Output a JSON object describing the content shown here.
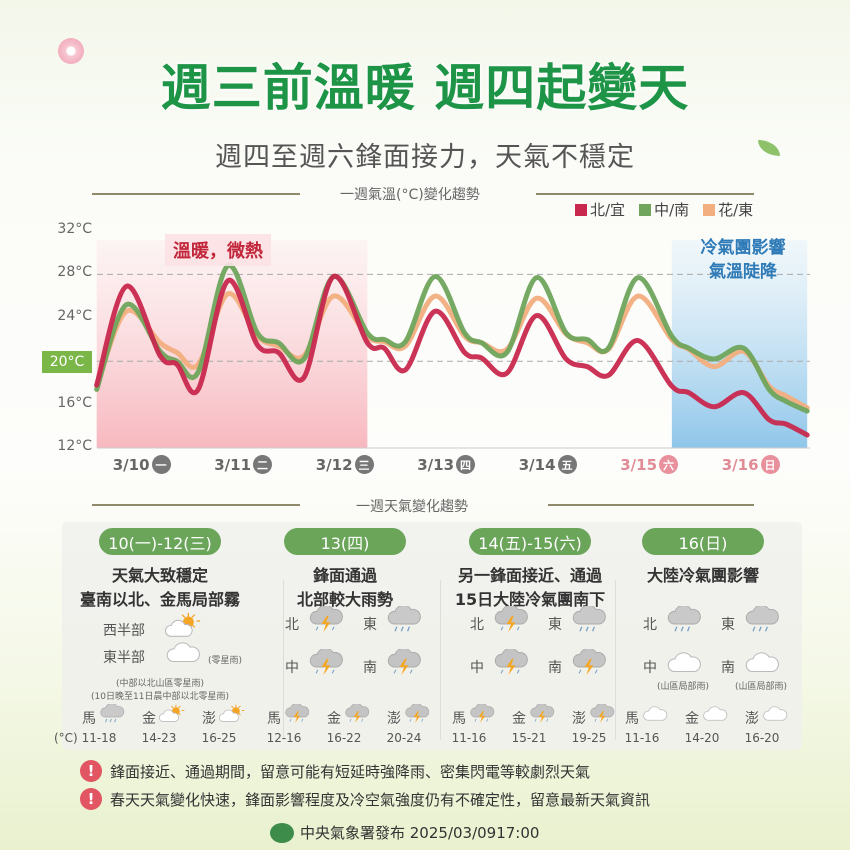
{
  "header": {
    "title": "週三前溫暖 週四起變天",
    "subtitle": "週四至週六鋒面接力，天氣不穩定"
  },
  "chart_data": {
    "type": "line",
    "title": "一週氣溫(°C)變化趨勢",
    "ylabel": "°C",
    "ylim": [
      12,
      32
    ],
    "yticks": [
      "32°C",
      "28°C",
      "24°C",
      "20°C",
      "16°C",
      "12°C"
    ],
    "ytick_values": [
      32,
      28,
      24,
      20,
      16,
      12
    ],
    "highlight_ytick": "20°C",
    "gridlines_dashed": [
      28,
      20
    ],
    "legend_position": "top-right",
    "xticks": [
      {
        "date": "3/10",
        "weekday": "一",
        "weekend": false
      },
      {
        "date": "3/11",
        "weekday": "二",
        "weekend": false
      },
      {
        "date": "3/12",
        "weekday": "三",
        "weekend": false
      },
      {
        "date": "3/13",
        "weekday": "四",
        "weekend": false
      },
      {
        "date": "3/14",
        "weekday": "五",
        "weekend": false
      },
      {
        "date": "3/15",
        "weekday": "六",
        "weekend": true
      },
      {
        "date": "3/16",
        "weekday": "日",
        "weekend": true
      }
    ],
    "x": [
      "3/10 03:00",
      "3/10 10:00",
      "3/10 18:00",
      "3/10 22:00",
      "3/11 03:00",
      "3/11 10:00",
      "3/11 17:00",
      "3/11 22:00",
      "3/12 04:00",
      "3/12 11:00",
      "3/12 19:00",
      "3/12 23:00",
      "3/13 04:00",
      "3/13 11:00",
      "3/13 18:00",
      "3/13 22:00",
      "3/14 04:00",
      "3/14 11:00",
      "3/14 18:00",
      "3/14 23:00",
      "3/15 04:00",
      "3/15 11:00",
      "3/15 19:00",
      "3/15 23:00",
      "3/16 05:00",
      "3/16 12:00",
      "3/16 18:00",
      "3/16 22:00",
      "3/17 03:00"
    ],
    "series": [
      {
        "name": "北/宜",
        "color": "#c8284e",
        "values": [
          17.8,
          26.9,
          20.5,
          19.7,
          17.4,
          27.4,
          21.5,
          20.8,
          18.5,
          27.8,
          21.7,
          21.2,
          19.2,
          24.6,
          20.8,
          20.3,
          18.9,
          24.2,
          20.2,
          19.5,
          18.7,
          21.9,
          17.7,
          17.1,
          15.8,
          17.1,
          14.6,
          14.2,
          13.2
        ]
      },
      {
        "name": "中/南",
        "color": "#6fa55c",
        "values": [
          17.4,
          25.2,
          20.9,
          20.0,
          19.0,
          28.8,
          22.6,
          21.7,
          20.2,
          27.8,
          22.6,
          22.0,
          21.8,
          27.8,
          22.6,
          21.7,
          20.8,
          27.7,
          22.6,
          22.0,
          21.2,
          27.7,
          22.3,
          21.2,
          20.2,
          21.2,
          17.4,
          16.3,
          15.4
        ]
      },
      {
        "name": "花/東",
        "color": "#f2ae7e",
        "values": [
          17.7,
          24.6,
          21.7,
          20.8,
          19.7,
          26.2,
          22.3,
          21.4,
          20.5,
          26.0,
          22.3,
          21.8,
          21.4,
          26.0,
          22.3,
          21.7,
          21.1,
          25.8,
          22.5,
          21.7,
          21.1,
          26.0,
          22.0,
          21.1,
          19.5,
          20.9,
          17.7,
          16.8,
          15.7
        ]
      }
    ],
    "annotations": [
      {
        "label": "溫暖，微熱",
        "from": "3/10 03:00",
        "to": "3/12 19:00",
        "color": "#f7bcc2"
      },
      {
        "label_lines": [
          "冷氣團影響",
          "氣溫陡降"
        ],
        "from": "3/15 19:00",
        "to": "3/17 03:00",
        "color": "#8fc6ea"
      }
    ]
  },
  "weekly": {
    "title": "一週天氣變化趨勢",
    "temp_unit": "(°C)",
    "columns": [
      {
        "pill": "10(一)-12(三)",
        "headline": [
          "天氣大致穩定",
          "臺南以北、金馬局部霧"
        ],
        "regions": [
          {
            "label": "西半部",
            "icon": "sun-cloud"
          },
          {
            "label": "東半部",
            "icon": "cloud",
            "note": "(零星雨)"
          }
        ],
        "notes": [
          "(中部以北山區零星雨)",
          "(10日晚至11日晨中部以北零星雨)"
        ],
        "islands": [
          {
            "name": "馬",
            "icon": "rain",
            "temp": "11-18"
          },
          {
            "name": "金",
            "icon": "sun-cloud",
            "temp": "14-23"
          },
          {
            "name": "澎",
            "icon": "sun-cloud",
            "temp": "16-25"
          }
        ]
      },
      {
        "pill": "13(四)",
        "headline": [
          "鋒面通過",
          "北部較大雨勢"
        ],
        "regions": [
          {
            "label": "北",
            "icon": "thunder"
          },
          {
            "label": "東",
            "icon": "rain"
          },
          {
            "label": "中",
            "icon": "thunder"
          },
          {
            "label": "南",
            "icon": "thunder"
          }
        ],
        "islands": [
          {
            "name": "馬",
            "icon": "thunder",
            "temp": "12-16"
          },
          {
            "name": "金",
            "icon": "thunder",
            "temp": "16-22"
          },
          {
            "name": "澎",
            "icon": "thunder",
            "temp": "20-24"
          }
        ]
      },
      {
        "pill": "14(五)-15(六)",
        "headline": [
          "另一鋒面接近、通過",
          "15日大陸冷氣團南下"
        ],
        "regions": [
          {
            "label": "北",
            "icon": "thunder"
          },
          {
            "label": "東",
            "icon": "rain"
          },
          {
            "label": "中",
            "icon": "thunder"
          },
          {
            "label": "南",
            "icon": "thunder"
          }
        ],
        "islands": [
          {
            "name": "馬",
            "icon": "thunder",
            "temp": "11-16"
          },
          {
            "name": "金",
            "icon": "thunder",
            "temp": "15-21"
          },
          {
            "name": "澎",
            "icon": "thunder",
            "temp": "19-25"
          }
        ]
      },
      {
        "pill": "16(日)",
        "headline": [
          "大陸冷氣團影響"
        ],
        "regions": [
          {
            "label": "北",
            "icon": "rain"
          },
          {
            "label": "東",
            "icon": "rain"
          },
          {
            "label": "中",
            "icon": "cloud",
            "note": "(山區局部雨)"
          },
          {
            "label": "南",
            "icon": "cloud",
            "note": "(山區局部雨)"
          }
        ],
        "islands": [
          {
            "name": "馬",
            "icon": "cloud",
            "temp": "11-16"
          },
          {
            "name": "金",
            "icon": "cloud",
            "temp": "14-20"
          },
          {
            "name": "澎",
            "icon": "cloud",
            "temp": "16-20"
          }
        ]
      }
    ]
  },
  "warnings": [
    "鋒面接近、通過期間，留意可能有短延時強降雨、密集閃電等較劇烈天氣",
    "春天天氣變化快速，鋒面影響程度及冷空氣強度仍有不確定性，留意最新天氣資訊"
  ],
  "footer": {
    "text": "中央氣象署發布 2025/03/0917:00",
    "logo": "中央氣象署"
  }
}
